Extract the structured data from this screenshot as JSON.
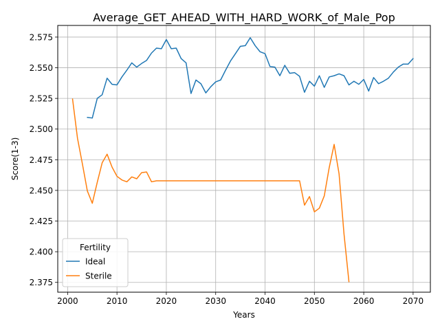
{
  "chart_data": {
    "type": "line",
    "title": "Average_GET_AHEAD_WITH_HARD_WORK_of_Male_Pop",
    "xlabel": "Years",
    "ylabel": "Score(1-3)",
    "xlim": [
      1998,
      2073.5
    ],
    "ylim": [
      2.367,
      2.5845
    ],
    "xticks": [
      2000,
      2010,
      2020,
      2030,
      2040,
      2050,
      2060,
      2070
    ],
    "yticks": [
      2.375,
      2.4,
      2.425,
      2.45,
      2.475,
      2.5,
      2.525,
      2.55,
      2.575
    ],
    "ytick_labels": [
      "2.375",
      "2.400",
      "2.425",
      "2.450",
      "2.475",
      "2.500",
      "2.525",
      "2.550",
      "2.575"
    ],
    "grid": true,
    "legend": {
      "title": "Fertility",
      "position": "lower-left"
    },
    "series": [
      {
        "name": "Ideal",
        "color": "#1f77b4",
        "x": [
          2004,
          2005,
          2006,
          2007,
          2008,
          2009,
          2010,
          2011,
          2012,
          2013,
          2014,
          2015,
          2016,
          2017,
          2018,
          2019,
          2020,
          2021,
          2022,
          2023,
          2024,
          2025,
          2026,
          2027,
          2028,
          2029,
          2030,
          2031,
          2032,
          2033,
          2034,
          2035,
          2036,
          2037,
          2038,
          2039,
          2040,
          2041,
          2042,
          2043,
          2044,
          2045,
          2046,
          2047,
          2048,
          2049,
          2050,
          2051,
          2052,
          2053,
          2054,
          2055,
          2056,
          2057,
          2058,
          2059,
          2060,
          2061,
          2062,
          2063,
          2064,
          2065,
          2066,
          2067,
          2068,
          2069,
          2070
        ],
        "y": [
          2.5095,
          2.509,
          2.525,
          2.528,
          2.5415,
          2.5365,
          2.536,
          2.5425,
          2.548,
          2.554,
          2.5505,
          2.5535,
          2.556,
          2.562,
          2.566,
          2.5655,
          2.573,
          2.5655,
          2.566,
          2.5575,
          2.554,
          2.529,
          2.54,
          2.537,
          2.5295,
          2.5345,
          2.5385,
          2.54,
          2.548,
          2.5555,
          2.5615,
          2.5675,
          2.568,
          2.5745,
          2.568,
          2.563,
          2.5615,
          2.551,
          2.5505,
          2.5435,
          2.552,
          2.5455,
          2.546,
          2.543,
          2.53,
          2.539,
          2.535,
          2.5435,
          2.534,
          2.5425,
          2.5435,
          2.545,
          2.5435,
          2.536,
          2.539,
          2.5365,
          2.5405,
          2.531,
          2.542,
          2.537,
          2.539,
          2.5415,
          2.5465,
          2.5505,
          2.553,
          2.553,
          2.5575
        ]
      },
      {
        "name": "Sterile",
        "color": "#ff7f0e",
        "x": [
          2001,
          2002,
          2003,
          2004,
          2005,
          2006,
          2007,
          2008,
          2009,
          2010,
          2011,
          2012,
          2013,
          2014,
          2015,
          2016,
          2017,
          2018,
          2019,
          2020,
          2021,
          2022,
          2023,
          2024,
          2025,
          2026,
          2027,
          2028,
          2029,
          2030,
          2031,
          2032,
          2033,
          2034,
          2035,
          2036,
          2037,
          2038,
          2039,
          2040,
          2041,
          2042,
          2043,
          2044,
          2045,
          2046,
          2047,
          2048,
          2049,
          2050,
          2051,
          2052,
          2053,
          2054,
          2055,
          2056,
          2057
        ],
        "y": [
          2.5245,
          2.4925,
          2.4715,
          2.4495,
          2.4395,
          2.4565,
          2.4725,
          2.4795,
          2.469,
          2.4615,
          2.4585,
          2.457,
          2.461,
          2.4595,
          2.4645,
          2.465,
          2.457,
          2.4578,
          2.4578,
          2.4578,
          2.4578,
          2.4578,
          2.4578,
          2.4578,
          2.4578,
          2.4578,
          2.4578,
          2.4578,
          2.4578,
          2.4578,
          2.4578,
          2.4578,
          2.4578,
          2.4578,
          2.4578,
          2.4578,
          2.4578,
          2.4578,
          2.4578,
          2.4578,
          2.4578,
          2.4578,
          2.4578,
          2.4578,
          2.4578,
          2.4578,
          2.4578,
          2.438,
          2.445,
          2.4325,
          2.4355,
          2.4455,
          2.4685,
          2.4875,
          2.4635,
          2.4145,
          2.3755
        ]
      }
    ]
  }
}
